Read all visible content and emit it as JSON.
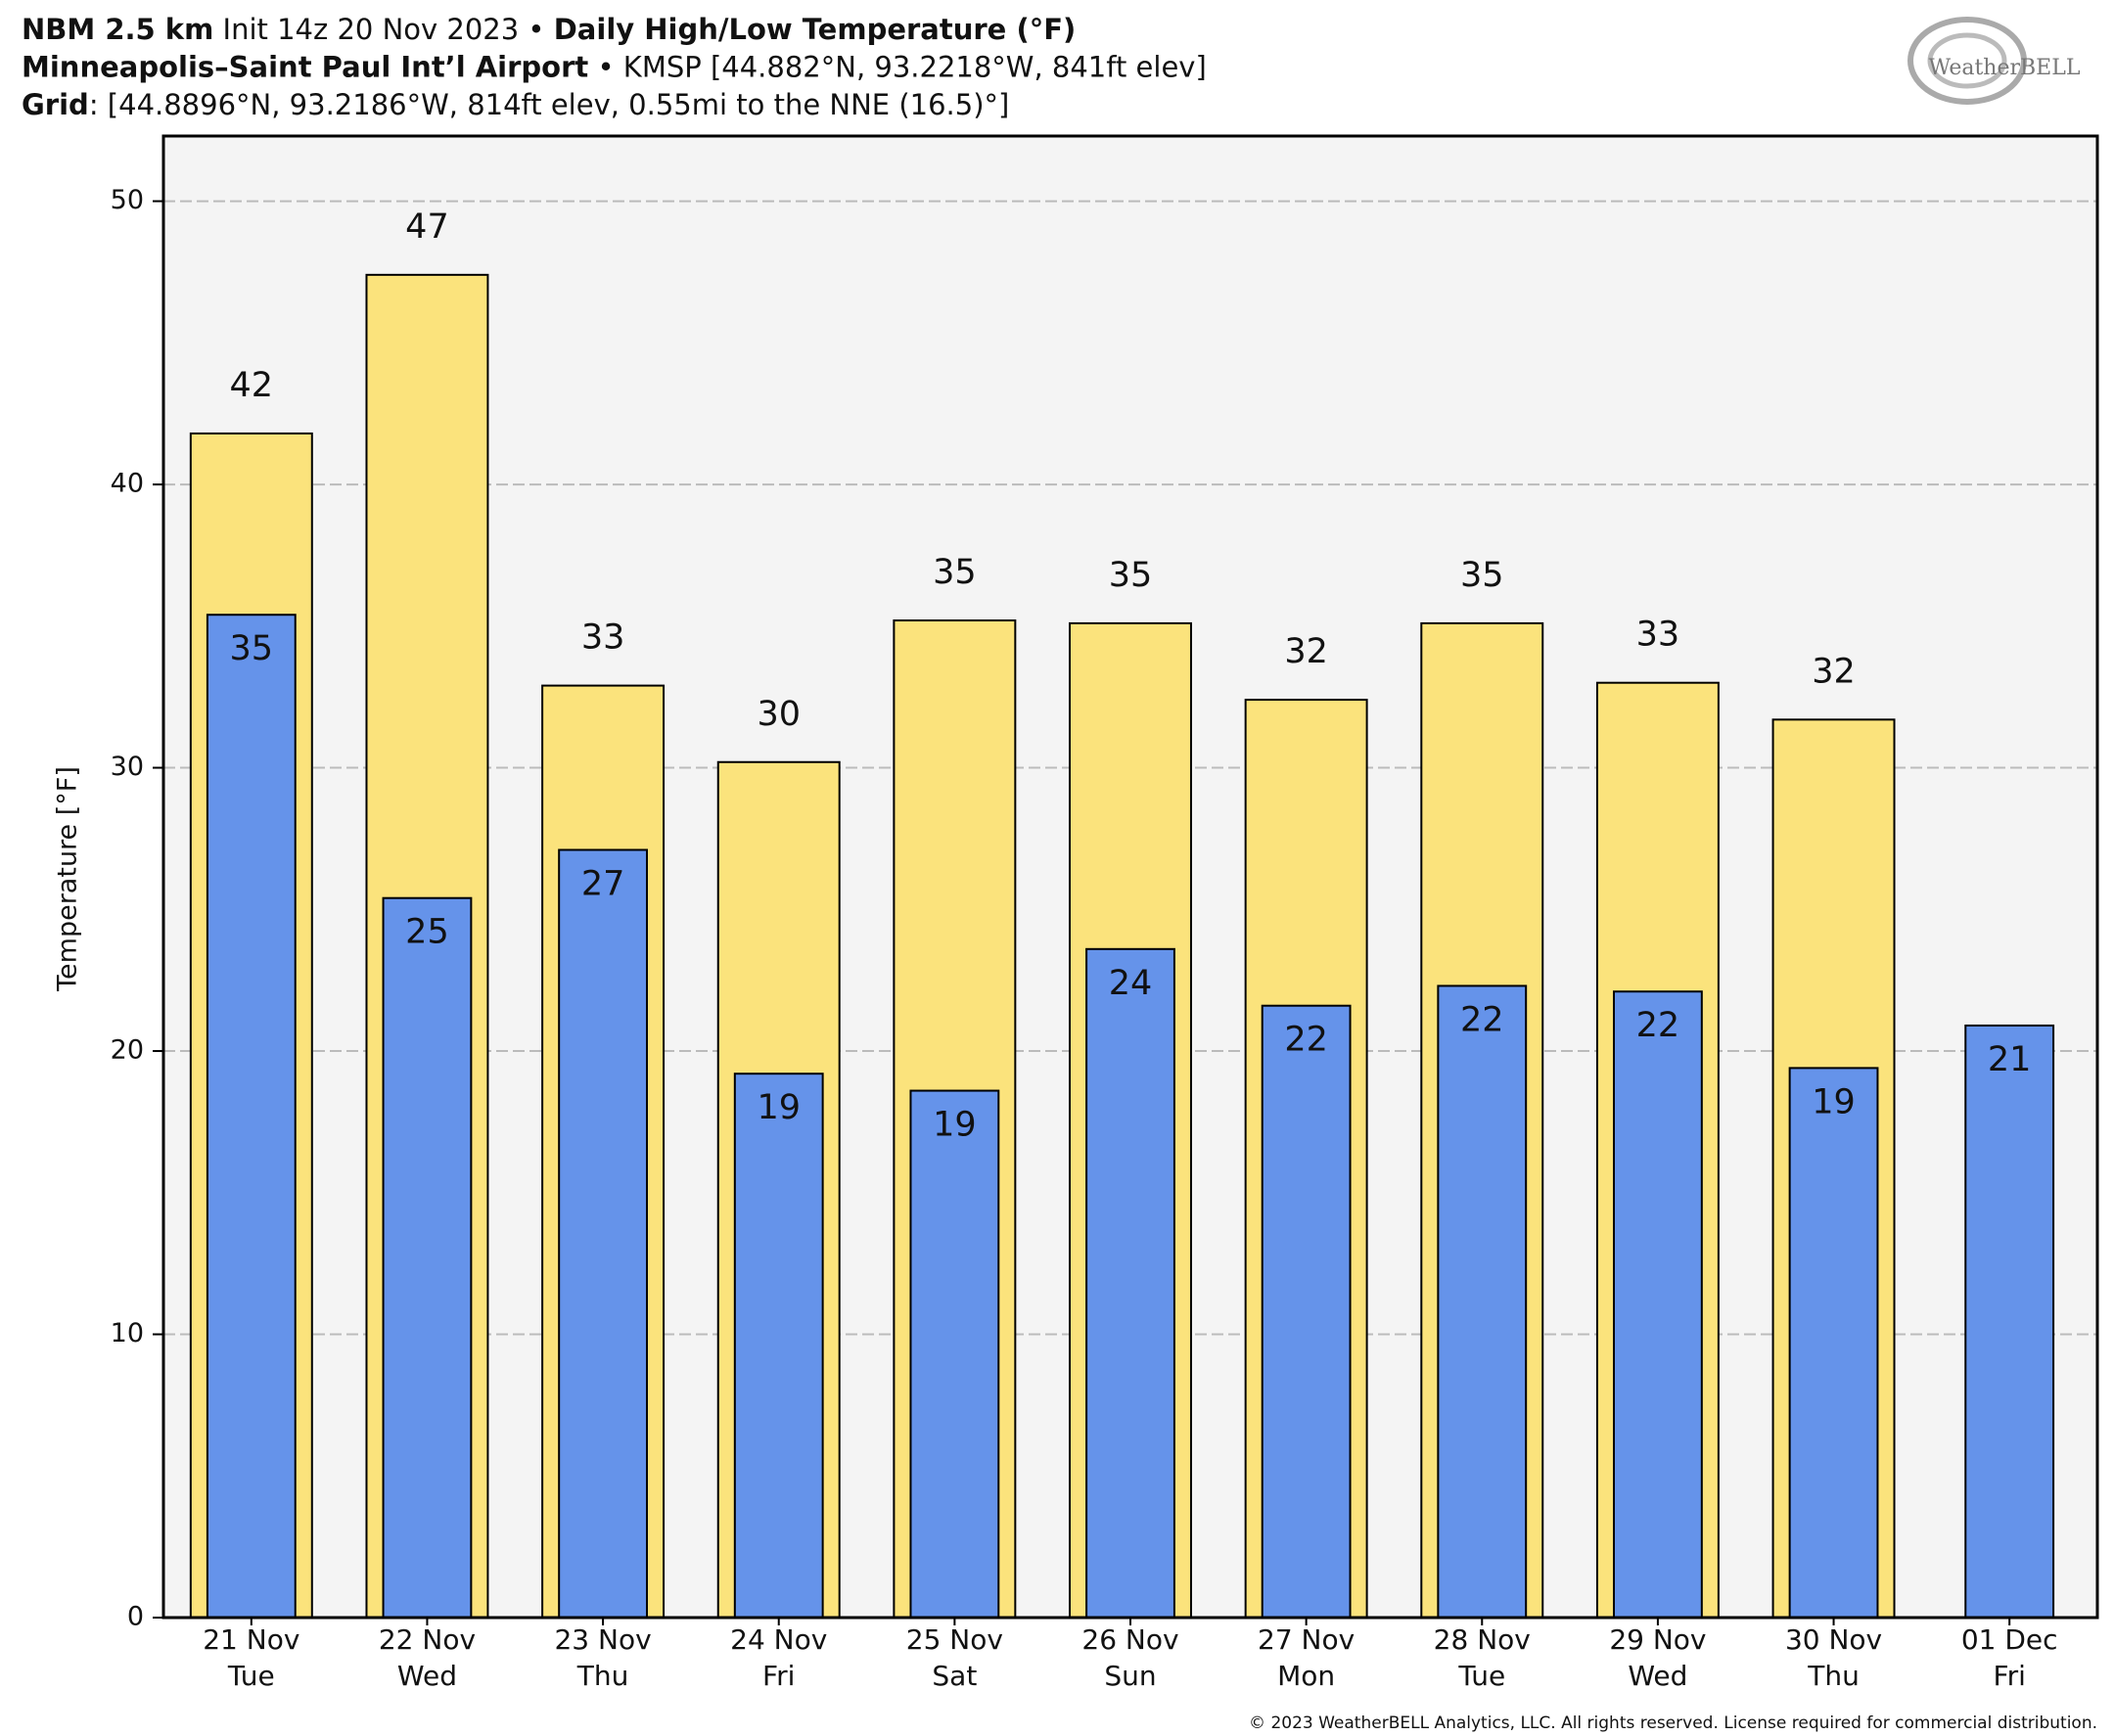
{
  "chart_data": {
    "type": "bar",
    "title_lines": [
      [
        {
          "text": "NBM 2.5 km",
          "bold": true
        },
        {
          "text": " Init 14z 20 Nov 2023 • ",
          "bold": false
        },
        {
          "text": "Daily High/Low Temperature (°F)",
          "bold": true
        }
      ],
      [
        {
          "text": "Minneapolis–Saint Paul Int’l Airport",
          "bold": true
        },
        {
          "text": " • KMSP [44.882°N, 93.2218°W, 841ft elev]",
          "bold": false
        }
      ],
      [
        {
          "text": "Grid",
          "bold": true
        },
        {
          "text": ": [44.8896°N, 93.2186°W, 814ft elev, 0.55mi to the NNE (16.5)°]",
          "bold": false
        }
      ]
    ],
    "logo": "WeatherBELL",
    "y_label": "Temperature [°F]",
    "footer": "© 2023 WeatherBELL Analytics, LLC. All rights reserved. License required for commercial distribution.",
    "categories": [
      [
        "21 Nov",
        "Tue"
      ],
      [
        "22 Nov",
        "Wed"
      ],
      [
        "23 Nov",
        "Thu"
      ],
      [
        "24 Nov",
        "Fri"
      ],
      [
        "25 Nov",
        "Sat"
      ],
      [
        "26 Nov",
        "Sun"
      ],
      [
        "27 Nov",
        "Mon"
      ],
      [
        "28 Nov",
        "Tue"
      ],
      [
        "29 Nov",
        "Wed"
      ],
      [
        "30 Nov",
        "Thu"
      ],
      [
        "01 Dec",
        "Fri"
      ]
    ],
    "series": [
      {
        "color": "#fbe37c",
        "values": [
          41.8,
          47.4,
          32.9,
          30.2,
          35.2,
          35.1,
          32.4,
          35.1,
          33.0,
          31.7,
          null
        ],
        "value_labels": [
          "42",
          "47",
          "33",
          "30",
          "35",
          "35",
          "32",
          "35",
          "33",
          "32",
          null
        ]
      },
      {
        "color": "#6593ea",
        "values": [
          35.4,
          25.4,
          27.1,
          19.2,
          18.6,
          23.6,
          21.6,
          22.3,
          22.1,
          19.4,
          20.9
        ],
        "value_labels": [
          "35",
          "25",
          "27",
          "19",
          "19",
          "24",
          "22",
          "22",
          "22",
          "19",
          "21"
        ]
      }
    ],
    "ylim": [
      0,
      52.3
    ],
    "yticks": [
      0,
      10,
      20,
      30,
      40,
      50
    ],
    "grid": true
  }
}
